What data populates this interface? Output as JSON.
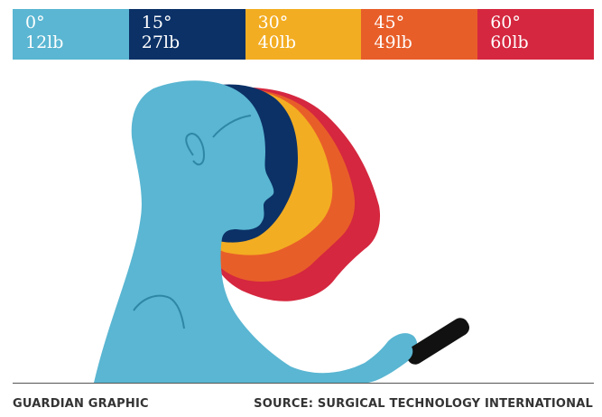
{
  "legend": [
    {
      "angle": "0°",
      "weight": "12lb",
      "color": "#5ab6d2"
    },
    {
      "angle": "15°",
      "weight": "27lb",
      "color": "#0b3167"
    },
    {
      "angle": "30°",
      "weight": "40lb",
      "color": "#f3ad22"
    },
    {
      "angle": "45°",
      "weight": "49lb",
      "color": "#e85e29"
    },
    {
      "angle": "60°",
      "weight": "60lb",
      "color": "#d5273f"
    }
  ],
  "footer": {
    "credit": "GUARDIAN GRAPHIC",
    "source": "SOURCE: SURGICAL TECHNOLOGY INTERNATIONAL"
  },
  "icons": {
    "phone": "smartphone-icon"
  }
}
